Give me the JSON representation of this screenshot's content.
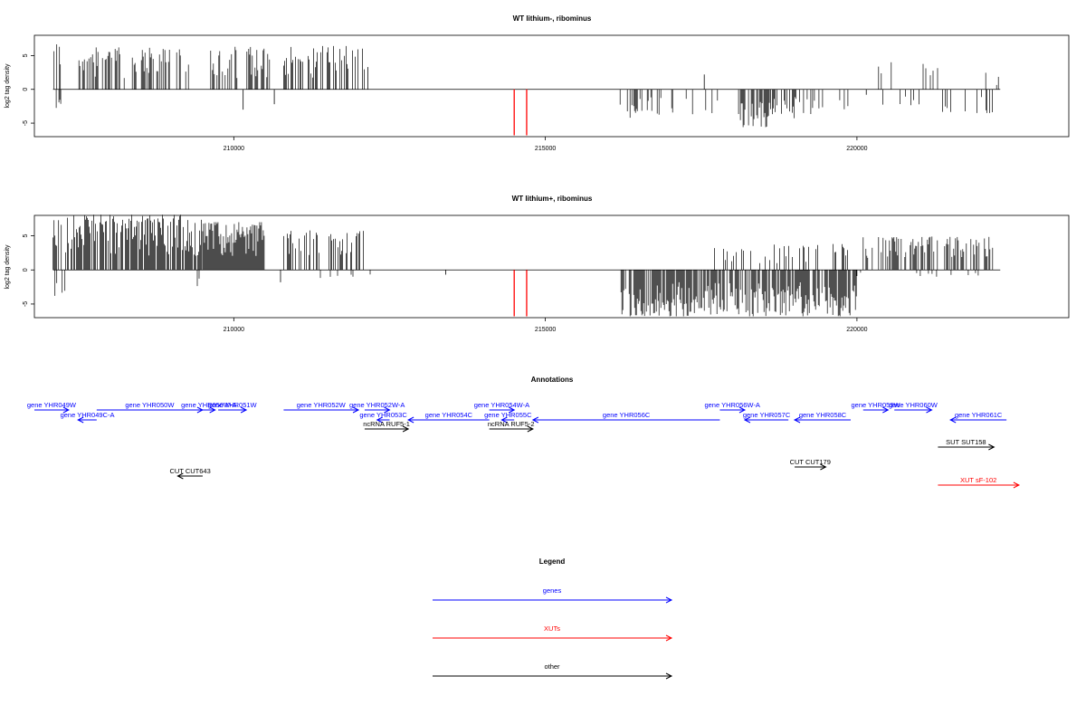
{
  "colors": {
    "gene": "#0000ff",
    "xut": "#ff0000",
    "other": "#000000",
    "marker": "#ff0000",
    "trace": "#000000"
  },
  "annotations_title": "Annotations",
  "legend": {
    "title": "Legend",
    "items": [
      {
        "label": "genes",
        "kind": "gene"
      },
      {
        "label": "XUTs",
        "kind": "xut"
      },
      {
        "label": "other",
        "kind": "other"
      }
    ]
  },
  "chart_data": [
    {
      "type": "bar",
      "title": "WT lithium-, ribominus",
      "xlabel": "",
      "ylabel": "log2 tag density",
      "xlim": [
        206800,
        223400
      ],
      "ylim": [
        -7,
        8
      ],
      "xticks": [
        210000,
        215000,
        220000
      ],
      "xtick_labels": [
        "210000",
        "215000",
        "220000"
      ],
      "yticks": [
        -5,
        0,
        5
      ],
      "ytick_labels": [
        "-5",
        "0",
        "5"
      ],
      "markers": {
        "x": [
          214500,
          214700
        ],
        "y0": 0,
        "y1": -6.8
      },
      "positive_regions": [
        {
          "start": 207100,
          "end": 207250,
          "max": 7.1,
          "density": 0.6
        },
        {
          "start": 207500,
          "end": 209300,
          "max": 6.2,
          "density": 0.45
        },
        {
          "start": 209600,
          "end": 210600,
          "max": 6.3,
          "density": 0.5
        },
        {
          "start": 210800,
          "end": 212100,
          "max": 6.4,
          "density": 0.5
        },
        {
          "start": 220100,
          "end": 220600,
          "max": 4.1,
          "density": 0.15
        },
        {
          "start": 220800,
          "end": 221300,
          "max": 3.8,
          "density": 0.2
        },
        {
          "start": 221500,
          "end": 222300,
          "max": 2.5,
          "density": 0.06
        }
      ],
      "negative_regions": [
        {
          "start": 207150,
          "end": 207250,
          "max": 3.0,
          "density": 0.3
        },
        {
          "start": 216200,
          "end": 217400,
          "max": 4.2,
          "density": 0.18
        },
        {
          "start": 217500,
          "end": 217800,
          "max": 4.0,
          "density": 0.08
        },
        {
          "start": 218100,
          "end": 218600,
          "max": 5.6,
          "density": 0.7
        },
        {
          "start": 218600,
          "end": 219100,
          "max": 4.5,
          "density": 0.5
        },
        {
          "start": 219100,
          "end": 220000,
          "max": 3.8,
          "density": 0.2
        },
        {
          "start": 220300,
          "end": 221000,
          "max": 3.0,
          "density": 0.08
        },
        {
          "start": 221200,
          "end": 222200,
          "max": 3.5,
          "density": 0.08
        }
      ],
      "isolated_bars": [
        {
          "x": 210150,
          "y": -3.0
        },
        {
          "x": 210650,
          "y": -2.2
        },
        {
          "x": 212150,
          "y": 3.3
        },
        {
          "x": 217550,
          "y": 2.2
        },
        {
          "x": 220150,
          "y": -0.8
        }
      ]
    },
    {
      "type": "bar",
      "title": "WT lithium+, ribominus",
      "xlabel": "",
      "ylabel": "log2 tag density",
      "xlim": [
        206800,
        223400
      ],
      "ylim": [
        -7,
        8
      ],
      "xticks": [
        210000,
        215000,
        220000
      ],
      "xtick_labels": [
        "210000",
        "215000",
        "220000"
      ],
      "yticks": [
        -5,
        0,
        5
      ],
      "ytick_labels": [
        "-5",
        "0",
        "5"
      ],
      "markers": {
        "x": [
          214500,
          214700
        ],
        "y0": 0,
        "y1": -6.8
      },
      "positive_regions": [
        {
          "start": 207100,
          "end": 207250,
          "max": 7.3,
          "density": 0.6
        },
        {
          "start": 207300,
          "end": 209500,
          "max": 8.1,
          "density": 0.8
        },
        {
          "start": 209500,
          "end": 210500,
          "max": 7.0,
          "density": 1.0
        },
        {
          "start": 210800,
          "end": 212100,
          "max": 5.8,
          "density": 0.4
        },
        {
          "start": 217700,
          "end": 219900,
          "max": 3.8,
          "density": 0.2
        },
        {
          "start": 220100,
          "end": 222200,
          "max": 4.9,
          "density": 0.5
        }
      ],
      "negative_regions": [
        {
          "start": 207100,
          "end": 207300,
          "max": 4.0,
          "density": 0.4
        },
        {
          "start": 208400,
          "end": 208500,
          "max": 2.3,
          "density": 0.2
        },
        {
          "start": 209400,
          "end": 209500,
          "max": 3.0,
          "density": 0.2
        },
        {
          "start": 211200,
          "end": 212200,
          "max": 1.2,
          "density": 0.06
        },
        {
          "start": 216200,
          "end": 220000,
          "max": 6.8,
          "density": 0.75
        },
        {
          "start": 220000,
          "end": 222200,
          "max": 1.0,
          "density": 0.08
        }
      ],
      "isolated_bars": [
        {
          "x": 213400,
          "y": -0.7
        },
        {
          "x": 210750,
          "y": -1.8
        }
      ]
    }
  ],
  "features": [
    {
      "label": "gene YHR049W",
      "kind": "gene",
      "dir": "right",
      "start": 206800,
      "end": 207350,
      "row": 0
    },
    {
      "label": "gene YHR049C-A",
      "kind": "gene",
      "dir": "left",
      "start": 207500,
      "end": 207800,
      "row": 1
    },
    {
      "label": "gene YHR050W",
      "kind": "gene",
      "dir": "right",
      "start": 207800,
      "end": 209500,
      "row": 0
    },
    {
      "label": "gene YHR050W-A",
      "kind": "gene",
      "dir": "right",
      "start": 209500,
      "end": 209700,
      "row": 0
    },
    {
      "label": "gene YHR051W",
      "kind": "gene",
      "dir": "right",
      "start": 209750,
      "end": 210200,
      "row": 0
    },
    {
      "label": "gene YHR052W",
      "kind": "gene",
      "dir": "right",
      "start": 210800,
      "end": 212000,
      "row": 0
    },
    {
      "label": "gene YHR052W-A",
      "kind": "gene",
      "dir": "right",
      "start": 212100,
      "end": 212500,
      "row": 0
    },
    {
      "label": "gene YHR053C",
      "kind": "gene",
      "dir": "left",
      "start": 212300,
      "end": 212500,
      "row": 1
    },
    {
      "label": "ncRNA RUF5-1",
      "kind": "other",
      "dir": "right",
      "start": 212100,
      "end": 212800,
      "row": 2
    },
    {
      "label": "gene YHR054C",
      "kind": "gene",
      "dir": "left",
      "start": 212800,
      "end": 214100,
      "row": 1
    },
    {
      "label": "gene YHR054W-A",
      "kind": "gene",
      "dir": "right",
      "start": 214100,
      "end": 214500,
      "row": 0
    },
    {
      "label": "gene YHR055C",
      "kind": "gene",
      "dir": "left",
      "start": 214300,
      "end": 214500,
      "row": 1
    },
    {
      "label": "ncRNA RUF5-2",
      "kind": "other",
      "dir": "right",
      "start": 214100,
      "end": 214800,
      "row": 2
    },
    {
      "label": "gene YHR056C",
      "kind": "gene",
      "dir": "left",
      "start": 214800,
      "end": 217800,
      "row": 1
    },
    {
      "label": "gene YHR056W-A",
      "kind": "gene",
      "dir": "right",
      "start": 217800,
      "end": 218200,
      "row": 0
    },
    {
      "label": "gene YHR057C",
      "kind": "gene",
      "dir": "left",
      "start": 218200,
      "end": 218900,
      "row": 1
    },
    {
      "label": "gene YHR058C",
      "kind": "gene",
      "dir": "left",
      "start": 219000,
      "end": 219900,
      "row": 1
    },
    {
      "label": "gene YHR059W",
      "kind": "gene",
      "dir": "right",
      "start": 220100,
      "end": 220500,
      "row": 0
    },
    {
      "label": "gene YHR060W",
      "kind": "gene",
      "dir": "right",
      "start": 220600,
      "end": 221200,
      "row": 0
    },
    {
      "label": "gene YHR061C",
      "kind": "gene",
      "dir": "left",
      "start": 221500,
      "end": 222400,
      "row": 1
    },
    {
      "label": "SUT SUT158",
      "kind": "other",
      "dir": "right",
      "start": 221300,
      "end": 222200,
      "row": 4
    },
    {
      "label": "CUT CUT643",
      "kind": "other",
      "dir": "left",
      "start": 209100,
      "end": 209500,
      "row": 6
    },
    {
      "label": "CUT CUT179",
      "kind": "other",
      "dir": "right",
      "start": 219000,
      "end": 219500,
      "row": 5
    },
    {
      "label": "XUT sF-102",
      "kind": "xut",
      "dir": "right",
      "start": 221300,
      "end": 222600,
      "row": 7
    }
  ]
}
